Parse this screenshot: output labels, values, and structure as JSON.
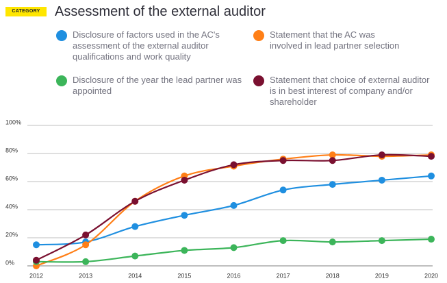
{
  "category": "CATEGORY",
  "chart_data": {
    "type": "line",
    "title": "Assessment of the external auditor",
    "categories": [
      "2012",
      "2013",
      "2014",
      "2015",
      "2016",
      "2017",
      "2018",
      "2019",
      "2020"
    ],
    "series": [
      {
        "name": "Disclosure of factors used in the AC's assessment of the external auditor qualifications and work quality",
        "color": "#1f8fe0",
        "values": [
          15,
          17,
          28,
          36,
          43,
          54,
          58,
          61,
          64
        ]
      },
      {
        "name": "Statement that the AC was involved in lead partner selection",
        "color": "#ff7f17",
        "values": [
          0,
          15,
          46,
          64,
          71,
          76,
          79,
          78,
          79
        ]
      },
      {
        "name": "Disclosure of the year the lead partner was appointed",
        "color": "#3cb55a",
        "values": [
          3,
          3,
          7,
          11,
          13,
          18,
          17,
          18,
          19
        ]
      },
      {
        "name": "Statement that choice of external auditor is in best interest of company and/or shareholder",
        "color": "#7a1030",
        "values": [
          4,
          22,
          46,
          61,
          72,
          75,
          75,
          79,
          78
        ]
      }
    ],
    "ylim": [
      0,
      100
    ],
    "yticks": [
      {
        "value": 0,
        "label": "0%"
      },
      {
        "value": 20,
        "label": "20%"
      },
      {
        "value": 40,
        "label": "40%"
      },
      {
        "value": 60,
        "label": "60%"
      },
      {
        "value": 80,
        "label": "80%"
      },
      {
        "value": 100,
        "label": "100%"
      }
    ],
    "grid": true
  }
}
